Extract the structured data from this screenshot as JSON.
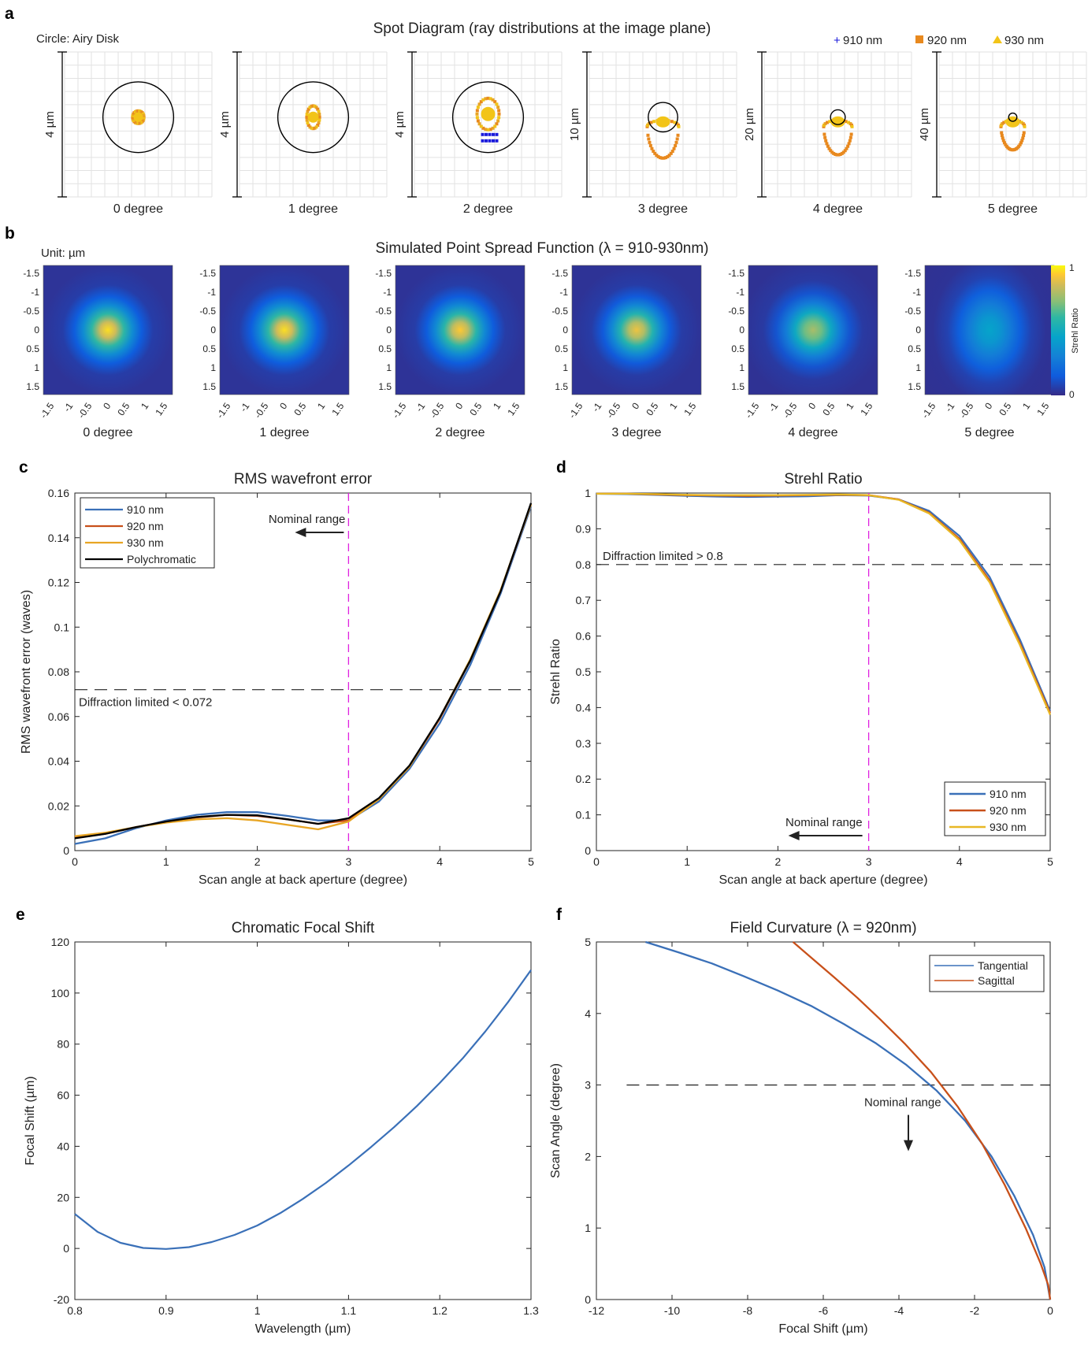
{
  "panel_letters": [
    "a",
    "b",
    "c",
    "d",
    "e",
    "f"
  ],
  "spot": {
    "title": "Spot Diagram (ray distributions at the image plane)",
    "circle_note": "Circle: Airy Disk",
    "legend": [
      {
        "label": "910 nm",
        "marker": "+",
        "color": "#1a1adb"
      },
      {
        "label": "920 nm",
        "marker": "■",
        "color": "#e8891e"
      },
      {
        "label": "930 nm",
        "marker": "▲",
        "color": "#f2c418"
      }
    ],
    "panels": [
      {
        "label": "0 degree",
        "scale": "4 µm"
      },
      {
        "label": "1 degree",
        "scale": "4 µm"
      },
      {
        "label": "2 degree",
        "scale": "4 µm"
      },
      {
        "label": "3 degree",
        "scale": "10 µm"
      },
      {
        "label": "4 degree",
        "scale": "20 µm"
      },
      {
        "label": "5 degree",
        "scale": "40 µm"
      }
    ]
  },
  "psf": {
    "title": "Simulated Point Spread Function (λ = 910-930nm)",
    "unit": "Unit: µm",
    "ticks": [
      "-1.5",
      "-1",
      "-0.5",
      "0",
      "0.5",
      "1",
      "1.5"
    ],
    "panels": [
      {
        "label": "0 degree",
        "peak": 0.96,
        "spread_x": 1.0,
        "spread_y": 1.0
      },
      {
        "label": "1 degree",
        "peak": 0.96,
        "spread_x": 1.0,
        "spread_y": 1.0
      },
      {
        "label": "2 degree",
        "peak": 0.93,
        "spread_x": 1.0,
        "spread_y": 1.0
      },
      {
        "label": "3 degree",
        "peak": 0.9,
        "spread_x": 1.0,
        "spread_y": 1.0
      },
      {
        "label": "4 degree",
        "peak": 0.78,
        "spread_x": 1.1,
        "spread_y": 1.1
      },
      {
        "label": "5 degree",
        "peak": 0.45,
        "spread_x": 1.25,
        "spread_y": 1.6
      }
    ],
    "colorbar": {
      "label": "Strehl Ratio",
      "max": "1",
      "min": "0"
    }
  },
  "chart_data": [
    {
      "type": "line",
      "title": "RMS wavefront error",
      "xlabel": "Scan angle at back aperture (degree)",
      "ylabel": "RMS wavefront error (waves)",
      "xlim": [
        0,
        5
      ],
      "ylim": [
        0,
        0.16
      ],
      "xticks": [
        "0",
        "1",
        "2",
        "3",
        "4",
        "5"
      ],
      "yticks": [
        "0",
        "0.02",
        "0.04",
        "0.06",
        "0.08",
        "0.1",
        "0.12",
        "0.14",
        "0.16"
      ],
      "x": [
        0,
        0.333,
        0.667,
        1,
        1.333,
        1.667,
        2,
        2.333,
        2.667,
        3,
        3.333,
        3.667,
        4,
        4.333,
        4.667,
        5
      ],
      "series": [
        {
          "name": "910 nm",
          "color": "#3a70b8",
          "values": [
            0.003,
            0.0055,
            0.01,
            0.0135,
            0.016,
            0.0172,
            0.0172,
            0.0155,
            0.0135,
            0.0135,
            0.022,
            0.0365,
            0.057,
            0.083,
            0.115,
            0.154
          ]
        },
        {
          "name": "920 nm",
          "color": "#c8501a",
          "values": [
            0.006,
            0.0075,
            0.0105,
            0.013,
            0.0148,
            0.016,
            0.0155,
            0.014,
            0.012,
            0.0135,
            0.023,
            0.0375,
            0.059,
            0.085,
            0.116,
            0.155
          ]
        },
        {
          "name": "930 nm",
          "color": "#e8a524",
          "values": [
            0.0065,
            0.008,
            0.0105,
            0.0125,
            0.014,
            0.0145,
            0.0135,
            0.0115,
            0.0095,
            0.013,
            0.023,
            0.0375,
            0.0595,
            0.0855,
            0.1165,
            0.155
          ]
        },
        {
          "name": "Polychromatic",
          "color": "#000000",
          "values": [
            0.0055,
            0.0075,
            0.0105,
            0.013,
            0.015,
            0.016,
            0.0158,
            0.014,
            0.012,
            0.0145,
            0.0235,
            0.038,
            0.0595,
            0.085,
            0.116,
            0.1555
          ]
        }
      ],
      "hline": {
        "value": 0.072,
        "label": "Diffraction limited < 0.072"
      },
      "vline": {
        "value": 3,
        "label": "Nominal range"
      },
      "legend_position": "top-left"
    },
    {
      "type": "line",
      "title": "Strehl Ratio",
      "xlabel": "Scan angle at back aperture (degree)",
      "ylabel": "Strehl Ratio",
      "xlim": [
        0,
        5
      ],
      "ylim": [
        0,
        1
      ],
      "xticks": [
        "0",
        "1",
        "2",
        "3",
        "4",
        "5"
      ],
      "yticks": [
        "0",
        "0.1",
        "0.2",
        "0.3",
        "0.4",
        "0.5",
        "0.6",
        "0.7",
        "0.8",
        "0.9",
        "1"
      ],
      "x": [
        0,
        0.333,
        0.667,
        1,
        1.333,
        1.667,
        2,
        2.333,
        2.667,
        3,
        3.333,
        3.667,
        4,
        4.333,
        4.667,
        5
      ],
      "series": [
        {
          "name": "910 nm",
          "color": "#3a70b8",
          "values": [
            0.998,
            0.997,
            0.995,
            0.992,
            0.99,
            0.989,
            0.99,
            0.991,
            0.994,
            0.993,
            0.982,
            0.95,
            0.88,
            0.765,
            0.59,
            0.39
          ]
        },
        {
          "name": "920 nm",
          "color": "#c8501a",
          "values": [
            0.998,
            0.998,
            0.996,
            0.994,
            0.993,
            0.992,
            0.993,
            0.994,
            0.995,
            0.994,
            0.982,
            0.945,
            0.872,
            0.755,
            0.58,
            0.385
          ]
        },
        {
          "name": "930 nm",
          "color": "#e8b724",
          "values": [
            0.998,
            0.998,
            0.997,
            0.995,
            0.994,
            0.994,
            0.994,
            0.995,
            0.996,
            0.994,
            0.981,
            0.943,
            0.868,
            0.75,
            0.575,
            0.38
          ]
        }
      ],
      "hline": {
        "value": 0.8,
        "label": "Diffraction limited > 0.8"
      },
      "vline": {
        "value": 3,
        "label": "Nominal range"
      },
      "legend_position": "bottom-right"
    },
    {
      "type": "line",
      "title": "Chromatic Focal Shift",
      "xlabel": "Wavelength (µm)",
      "ylabel": "Focal Shift (µm)",
      "xlim": [
        0.8,
        1.3
      ],
      "ylim": [
        -20,
        120
      ],
      "xticks": [
        "0.8",
        "0.9",
        "1",
        "1.1",
        "1.2",
        "1.3"
      ],
      "yticks": [
        "-20",
        "0",
        "20",
        "40",
        "60",
        "80",
        "100",
        "120"
      ],
      "x": [
        0.8,
        0.825,
        0.85,
        0.875,
        0.9,
        0.925,
        0.95,
        0.975,
        1.0,
        1.025,
        1.05,
        1.075,
        1.1,
        1.125,
        1.15,
        1.175,
        1.2,
        1.225,
        1.25,
        1.275,
        1.3
      ],
      "series": [
        {
          "name": "",
          "color": "#3a70b8",
          "values": [
            13.5,
            6.5,
            2.2,
            0.2,
            -0.2,
            0.5,
            2.5,
            5.3,
            9,
            13.8,
            19.4,
            25.6,
            32.5,
            39.8,
            47.5,
            55.8,
            64.8,
            74.4,
            85,
            96.5,
            109
          ]
        }
      ]
    },
    {
      "type": "line",
      "title": "Field Curvature (λ = 920nm)",
      "xlabel": "Focal Shift (µm)",
      "ylabel": "Scan Angle (degree)",
      "xlim": [
        -12,
        0
      ],
      "ylim": [
        0,
        5
      ],
      "xticks": [
        "-12",
        "-10",
        "-8",
        "-6",
        "-4",
        "-2",
        "0"
      ],
      "yticks": [
        "0",
        "1",
        "2",
        "3",
        "4",
        "5"
      ],
      "series": [
        {
          "name": "Tangential",
          "color": "#3a70b8",
          "x": [
            -10.7,
            -9.8,
            -8.95,
            -8.1,
            -7.2,
            -6.3,
            -5.45,
            -4.6,
            -3.8,
            -3.0,
            -2.25,
            -1.55,
            -0.95,
            -0.45,
            -0.15,
            0
          ],
          "values": [
            5,
            4.85,
            4.7,
            4.52,
            4.32,
            4.1,
            3.85,
            3.58,
            3.28,
            2.92,
            2.5,
            2.0,
            1.45,
            0.9,
            0.45,
            0
          ]
        },
        {
          "name": "Sagittal",
          "color": "#c8501a",
          "x": [
            -6.8,
            -6.25,
            -5.7,
            -5.1,
            -4.5,
            -3.85,
            -3.15,
            -2.45,
            -1.8,
            -1.2,
            -0.65,
            -0.25,
            -0.05,
            0
          ],
          "values": [
            5,
            4.75,
            4.5,
            4.22,
            3.92,
            3.58,
            3.18,
            2.7,
            2.18,
            1.6,
            1.0,
            0.5,
            0.2,
            0
          ]
        }
      ],
      "hline": {
        "value": 3,
        "label": "Nominal range"
      },
      "legend_position": "top-right"
    }
  ]
}
